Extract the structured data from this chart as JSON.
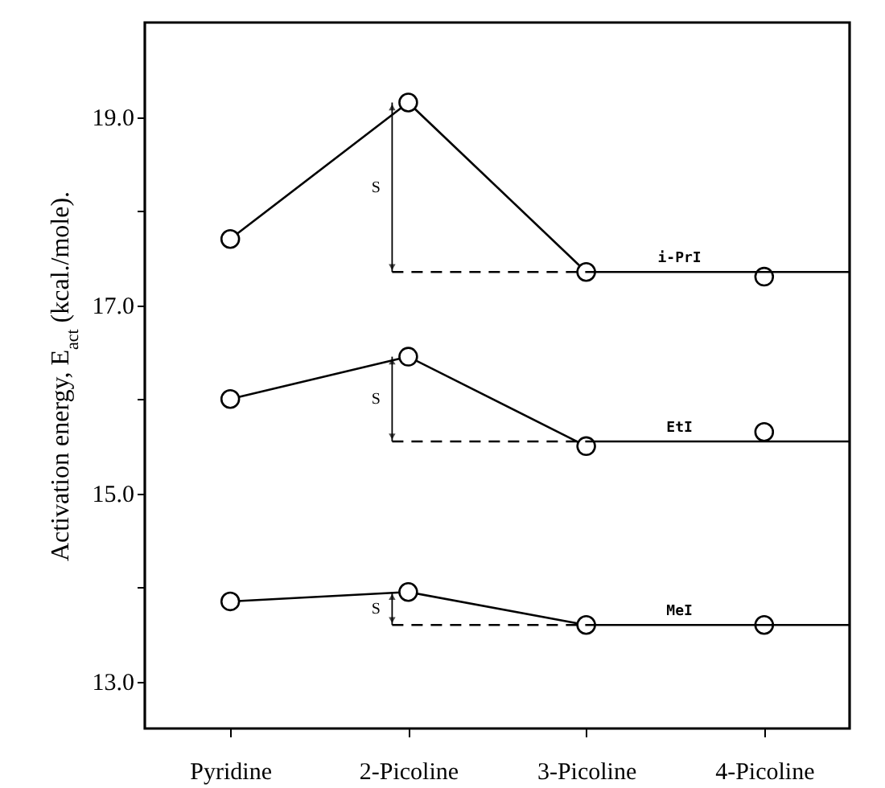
{
  "chart_data": {
    "type": "line",
    "ylabel": "Activation energy, E$_{act}$ (kcal./mole).",
    "categories": [
      "Pyridine",
      "2-Picoline",
      "3-Picoline",
      "4-Picoline"
    ],
    "ylim": [
      12.5,
      20.0
    ],
    "yticks": [
      {
        "value": 13,
        "label": "13.0"
      },
      {
        "value": 14,
        "label": null
      },
      {
        "value": 15,
        "label": "15.0"
      },
      {
        "value": 16,
        "label": null
      },
      {
        "value": 17,
        "label": "17.0"
      },
      {
        "value": 18,
        "label": null
      },
      {
        "value": 19,
        "label": "19.0"
      }
    ],
    "marker": "circle",
    "grid": false,
    "series": [
      {
        "name": "i-PrI",
        "color": "#000000",
        "values": [
          17.7,
          19.15,
          17.35,
          null
        ]
      },
      {
        "type": "scatter",
        "color": "#000000",
        "values": [
          null,
          null,
          null,
          17.3
        ]
      },
      {
        "name": "EtI",
        "color": "#000000",
        "values": [
          16.0,
          16.45,
          15.5,
          null
        ]
      },
      {
        "type": "scatter",
        "color": "#000000",
        "values": [
          null,
          null,
          null,
          15.65
        ]
      },
      {
        "name": "MeI",
        "color": "#000000",
        "values": [
          13.85,
          13.95,
          13.6,
          null
        ]
      },
      {
        "type": "scatter",
        "color": "#000000",
        "values": [
          null,
          null,
          null,
          13.6
        ]
      }
    ],
    "ref_lines": [
      {
        "axis": "y",
        "value": 17.35,
        "line_style": "dashed"
      },
      {
        "axis": "y",
        "value": 15.55,
        "line_style": "dashed"
      },
      {
        "axis": "y",
        "value": 13.6,
        "line_style": "dashed"
      }
    ],
    "annotations": [
      "S",
      "S",
      "S"
    ]
  }
}
